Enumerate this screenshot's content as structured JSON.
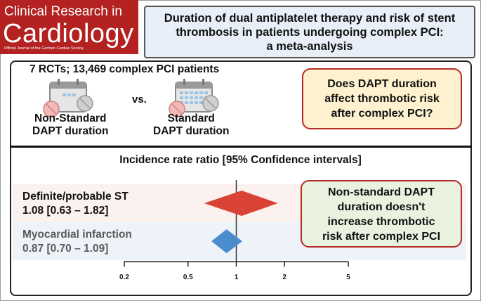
{
  "journal": {
    "line1": "Clinical Research in",
    "line2": "Cardiology",
    "line3": "Official Journal of the German Cardiac Society"
  },
  "title": {
    "line1": "Duration of dual antiplatelet therapy and risk of stent",
    "line2": "thrombosis in patients undergoing complex PCI:",
    "line3": "a meta-analysis"
  },
  "study": {
    "summary": "7 RCTs; 13,469 complex PCI patients",
    "arm1": {
      "line1": "Non-Standard",
      "line2": "DAPT duration"
    },
    "vs": "vs.",
    "arm2": {
      "line1": "Standard",
      "line2": "DAPT duration"
    }
  },
  "question": {
    "line1": "Does DAPT duration",
    "line2": "affect thrombotic risk",
    "line3": "after complex PCI?"
  },
  "forest": {
    "heading": "Incidence rate ratio [95% Confidence intervals]",
    "rows": [
      {
        "name": "Definite/probable ST",
        "stat": "1.08 [0.63 – 1.82]",
        "est": 1.08,
        "lo": 0.63,
        "hi": 1.82,
        "color": "#d84336",
        "label_color": "#111111"
      },
      {
        "name": "Myocardial infarction",
        "stat": "0.87 [0.70 – 1.09]",
        "est": 0.87,
        "lo": 0.7,
        "hi": 1.09,
        "color": "#4a8ccd",
        "label_color": "#5a5a5a"
      }
    ],
    "axis": {
      "scale": "log",
      "ticks": [
        "0.2",
        "0.5",
        "1",
        "2",
        "5"
      ],
      "range": [
        0.2,
        5
      ],
      "reference": 1
    }
  },
  "conclusion": {
    "line1": "Non-standard DAPT",
    "line2": "duration doesn't",
    "line3": "increase thrombotic",
    "line4": "risk after complex PCI"
  }
}
